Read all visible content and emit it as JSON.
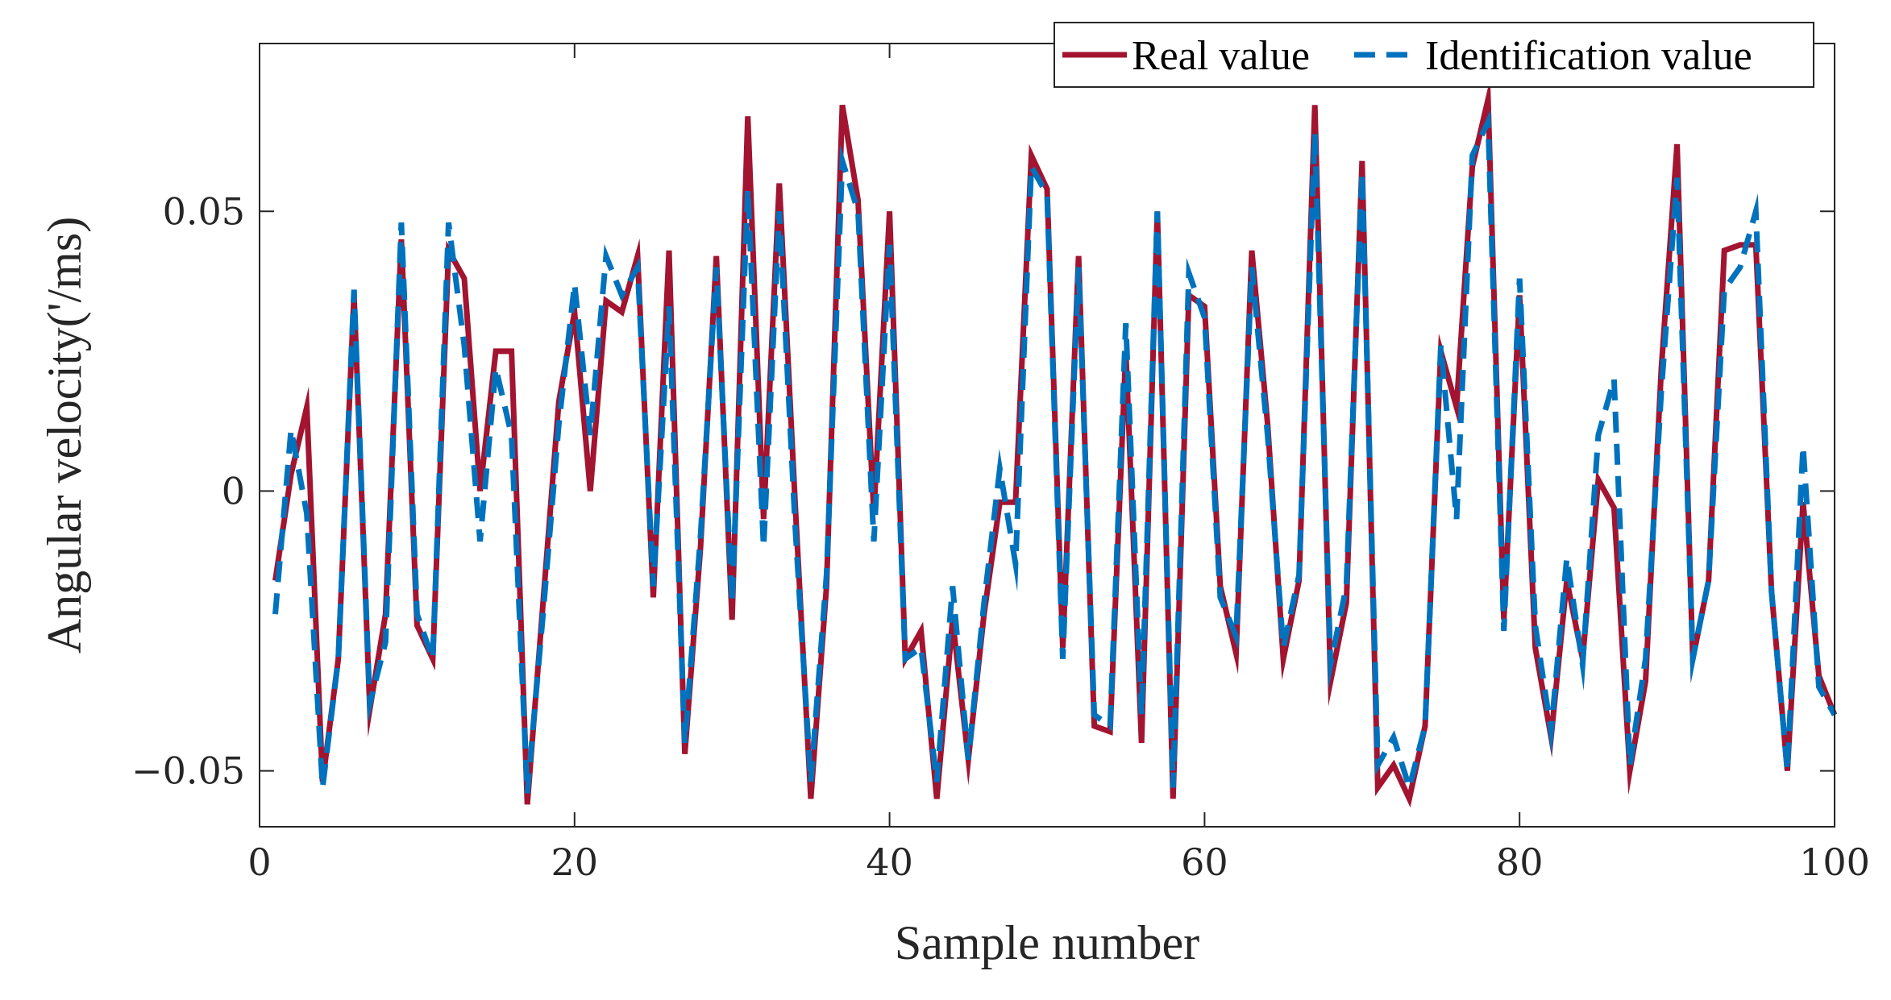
{
  "chart_data": {
    "type": "line",
    "title": "",
    "xlabel": "Sample number",
    "ylabel": "Angular velocity('/ms)",
    "xlim": [
      0,
      100
    ],
    "ylim": [
      -0.06,
      0.08
    ],
    "xticks": [
      0,
      20,
      40,
      60,
      80,
      100
    ],
    "xtick_labels": [
      "0",
      "20",
      "40",
      "60",
      "80",
      "100"
    ],
    "yticks": [
      -0.05,
      0,
      0.05
    ],
    "ytick_labels": [
      "−0.05",
      "0",
      "0.05"
    ],
    "grid": false,
    "legend_position": "top-right",
    "x": [
      1,
      2,
      3,
      4,
      5,
      6,
      7,
      8,
      9,
      10,
      11,
      12,
      13,
      14,
      15,
      16,
      17,
      18,
      19,
      20,
      21,
      22,
      23,
      24,
      25,
      26,
      27,
      28,
      29,
      30,
      31,
      32,
      33,
      34,
      35,
      36,
      37,
      38,
      39,
      40,
      41,
      42,
      43,
      44,
      45,
      46,
      47,
      48,
      49,
      50,
      51,
      52,
      53,
      54,
      55,
      56,
      57,
      58,
      59,
      60,
      61,
      62,
      63,
      64,
      65,
      66,
      67,
      68,
      69,
      70,
      71,
      72,
      73,
      74,
      75,
      76,
      77,
      78,
      79,
      80,
      81,
      82,
      83,
      84,
      85,
      86,
      87,
      88,
      89,
      90,
      91,
      92,
      93,
      94,
      95,
      96,
      97,
      98,
      99,
      100
    ],
    "series": [
      {
        "name": "Real value",
        "color": "#A2142F",
        "style": "solid",
        "values": [
          -0.016,
          0.003,
          0.015,
          -0.052,
          -0.03,
          0.035,
          -0.039,
          -0.022,
          0.045,
          -0.024,
          -0.03,
          0.043,
          0.038,
          0.0,
          0.025,
          0.025,
          -0.056,
          -0.02,
          0.016,
          0.032,
          0.0,
          0.034,
          0.032,
          0.042,
          -0.019,
          0.043,
          -0.047,
          -0.01,
          0.042,
          -0.023,
          0.067,
          -0.005,
          0.055,
          -0.002,
          -0.055,
          -0.017,
          0.069,
          0.052,
          -0.004,
          0.05,
          -0.03,
          -0.025,
          -0.055,
          -0.023,
          -0.048,
          -0.022,
          -0.002,
          -0.002,
          0.06,
          0.054,
          -0.028,
          0.042,
          -0.042,
          -0.043,
          0.025,
          -0.045,
          0.05,
          -0.055,
          0.035,
          0.033,
          -0.017,
          -0.029,
          0.043,
          0.012,
          -0.03,
          -0.016,
          0.069,
          -0.034,
          -0.02,
          0.059,
          -0.053,
          -0.049,
          -0.055,
          -0.042,
          0.025,
          0.015,
          0.058,
          0.07,
          -0.023,
          0.035,
          -0.028,
          -0.044,
          -0.016,
          -0.03,
          0.002,
          -0.003,
          -0.05,
          -0.034,
          0.022,
          0.062,
          -0.03,
          -0.016,
          0.043,
          0.044,
          0.044,
          -0.018,
          -0.05,
          -0.002,
          -0.033,
          -0.04
        ]
      },
      {
        "name": "Identification value",
        "color": "#0072BD",
        "style": "dashed",
        "values": [
          -0.022,
          0.011,
          -0.004,
          -0.053,
          -0.03,
          0.036,
          -0.038,
          -0.027,
          0.048,
          -0.022,
          -0.03,
          0.048,
          0.026,
          -0.009,
          0.022,
          0.01,
          -0.054,
          -0.022,
          0.012,
          0.037,
          0.01,
          0.042,
          0.035,
          0.04,
          -0.017,
          0.033,
          -0.045,
          -0.008,
          0.04,
          -0.02,
          0.054,
          -0.01,
          0.05,
          -0.006,
          -0.052,
          -0.015,
          0.059,
          0.05,
          -0.009,
          0.044,
          -0.03,
          -0.028,
          -0.052,
          -0.017,
          -0.048,
          -0.02,
          0.004,
          -0.013,
          0.058,
          0.053,
          -0.03,
          0.04,
          -0.04,
          -0.042,
          0.03,
          -0.04,
          0.05,
          -0.053,
          0.039,
          0.031,
          -0.019,
          -0.026,
          0.04,
          0.01,
          -0.028,
          -0.015,
          0.064,
          -0.031,
          -0.017,
          0.057,
          -0.049,
          -0.044,
          -0.053,
          -0.042,
          0.026,
          -0.005,
          0.06,
          0.066,
          -0.025,
          0.038,
          -0.024,
          -0.043,
          -0.012,
          -0.031,
          0.01,
          0.02,
          -0.049,
          -0.03,
          0.018,
          0.056,
          -0.03,
          -0.016,
          0.036,
          0.04,
          0.05,
          -0.018,
          -0.05,
          0.008,
          -0.035,
          -0.04
        ]
      }
    ]
  }
}
